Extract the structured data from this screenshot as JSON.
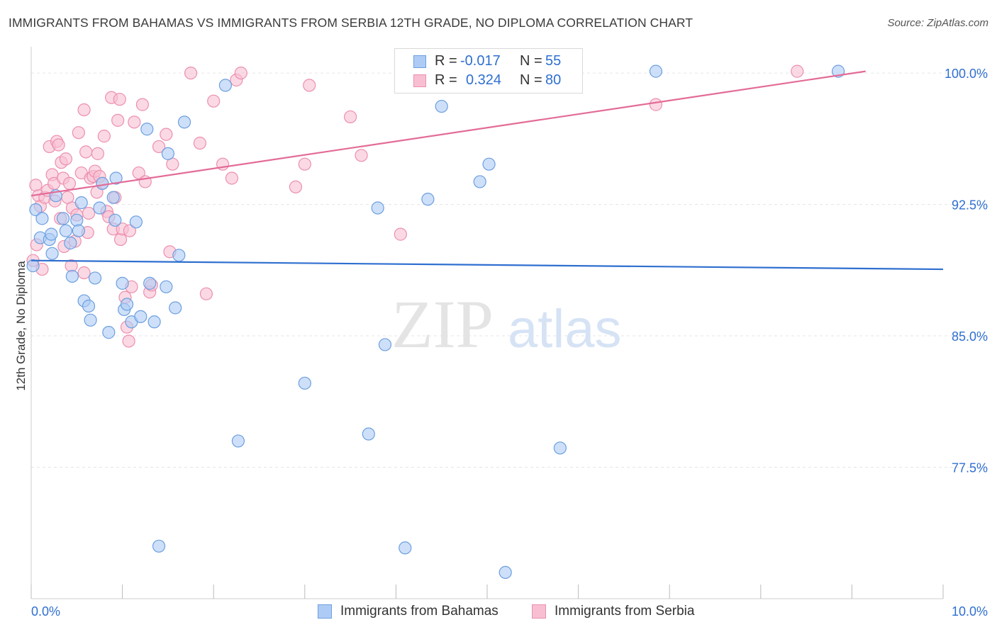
{
  "title": "IMMIGRANTS FROM BAHAMAS VS IMMIGRANTS FROM SERBIA 12TH GRADE, NO DIPLOMA CORRELATION CHART",
  "source": "Source: ZipAtlas.com",
  "watermark": {
    "zip": "ZIP",
    "atlas": "atlas"
  },
  "legend": {
    "bahamas": {
      "r_label": "R =",
      "r_value": "-0.017",
      "n_label": "N =",
      "n_value": "55"
    },
    "serbia": {
      "r_label": "R =",
      "r_value": "0.324",
      "n_label": "N =",
      "n_value": "80"
    }
  },
  "colors": {
    "bahamas_fill": "#aecbf5",
    "bahamas_stroke": "#6b9fe0",
    "bahamas_line": "#2f6fd0",
    "serbia_fill": "#f8bfd2",
    "serbia_stroke": "#ec8fae",
    "serbia_line": "#e36b97",
    "tick_label": "#2f6fd0",
    "grid": "#e5e5e5"
  },
  "chart_data": {
    "type": "scatter",
    "xlabel": "",
    "ylabel": "12th Grade, No Diploma",
    "xlim": [
      0,
      10
    ],
    "ylim": [
      70.0,
      101.5
    ],
    "x_tick_labels": [
      "0.0%",
      "10.0%"
    ],
    "y_ticks": [
      77.5,
      85.0,
      92.5,
      100.0
    ],
    "y_tick_labels": [
      "77.5%",
      "85.0%",
      "92.5%",
      "100.0%"
    ],
    "grid": true,
    "legend_position": "top-center",
    "series": [
      {
        "name": "Immigrants from Bahamas",
        "r": -0.017,
        "n": 55,
        "trend": {
          "x": [
            0.0,
            10.0
          ],
          "y": [
            89.3,
            88.8
          ]
        },
        "points": [
          [
            0.05,
            92.2
          ],
          [
            0.12,
            91.7
          ],
          [
            0.1,
            90.6
          ],
          [
            0.2,
            90.5
          ],
          [
            0.23,
            89.7
          ],
          [
            0.27,
            93.0
          ],
          [
            0.35,
            91.7
          ],
          [
            0.38,
            91.0
          ],
          [
            0.43,
            90.3
          ],
          [
            0.5,
            91.6
          ],
          [
            0.52,
            91.0
          ],
          [
            0.55,
            92.6
          ],
          [
            0.58,
            87.0
          ],
          [
            0.63,
            86.7
          ],
          [
            0.65,
            85.9
          ],
          [
            0.7,
            88.3
          ],
          [
            0.75,
            92.3
          ],
          [
            0.78,
            93.7
          ],
          [
            0.85,
            85.2
          ],
          [
            0.9,
            92.9
          ],
          [
            0.92,
            91.6
          ],
          [
            0.93,
            94.0
          ],
          [
            1.0,
            88.0
          ],
          [
            1.02,
            86.5
          ],
          [
            1.05,
            86.8
          ],
          [
            1.1,
            85.8
          ],
          [
            1.15,
            91.5
          ],
          [
            1.2,
            86.1
          ],
          [
            1.27,
            96.8
          ],
          [
            1.3,
            88.0
          ],
          [
            1.35,
            85.8
          ],
          [
            1.4,
            73.0
          ],
          [
            1.48,
            87.8
          ],
          [
            1.5,
            95.4
          ],
          [
            1.58,
            86.6
          ],
          [
            1.68,
            97.2
          ],
          [
            2.13,
            99.3
          ],
          [
            2.27,
            79.0
          ],
          [
            3.0,
            82.3
          ],
          [
            3.7,
            79.4
          ],
          [
            3.8,
            92.3
          ],
          [
            3.88,
            84.5
          ],
          [
            4.1,
            72.9
          ],
          [
            4.35,
            92.8
          ],
          [
            4.5,
            98.1
          ],
          [
            4.92,
            93.8
          ],
          [
            5.02,
            94.8
          ],
          [
            5.2,
            71.5
          ],
          [
            5.8,
            78.6
          ],
          [
            6.85,
            100.1
          ],
          [
            8.85,
            100.1
          ],
          [
            0.02,
            89.0
          ],
          [
            0.22,
            90.8
          ],
          [
            0.45,
            88.4
          ],
          [
            1.62,
            89.6
          ]
        ]
      },
      {
        "name": "Immigrants from Serbia",
        "r": 0.324,
        "n": 80,
        "trend": {
          "x": [
            0.0,
            9.15
          ],
          "y": [
            93.0,
            100.1
          ]
        },
        "points": [
          [
            0.05,
            93.6
          ],
          [
            0.08,
            93.0
          ],
          [
            0.1,
            92.4
          ],
          [
            0.15,
            92.9
          ],
          [
            0.18,
            93.3
          ],
          [
            0.2,
            95.8
          ],
          [
            0.23,
            94.2
          ],
          [
            0.25,
            93.7
          ],
          [
            0.28,
            96.1
          ],
          [
            0.3,
            95.9
          ],
          [
            0.33,
            94.9
          ],
          [
            0.35,
            94.0
          ],
          [
            0.38,
            95.1
          ],
          [
            0.4,
            92.9
          ],
          [
            0.42,
            93.7
          ],
          [
            0.45,
            92.3
          ],
          [
            0.48,
            90.4
          ],
          [
            0.5,
            91.9
          ],
          [
            0.52,
            96.6
          ],
          [
            0.55,
            94.3
          ],
          [
            0.58,
            97.9
          ],
          [
            0.6,
            95.5
          ],
          [
            0.63,
            92.0
          ],
          [
            0.65,
            94.0
          ],
          [
            0.68,
            94.1
          ],
          [
            0.7,
            94.4
          ],
          [
            0.73,
            95.4
          ],
          [
            0.75,
            94.1
          ],
          [
            0.78,
            93.7
          ],
          [
            0.8,
            96.4
          ],
          [
            0.83,
            92.1
          ],
          [
            0.85,
            91.8
          ],
          [
            0.88,
            98.6
          ],
          [
            0.9,
            91.1
          ],
          [
            0.92,
            92.9
          ],
          [
            0.95,
            97.3
          ],
          [
            0.97,
            98.5
          ],
          [
            0.98,
            90.5
          ],
          [
            1.0,
            91.1
          ],
          [
            1.03,
            87.2
          ],
          [
            1.05,
            85.5
          ],
          [
            1.07,
            84.7
          ],
          [
            1.1,
            87.8
          ],
          [
            1.13,
            97.2
          ],
          [
            1.18,
            94.3
          ],
          [
            1.22,
            98.2
          ],
          [
            1.25,
            93.8
          ],
          [
            1.3,
            87.5
          ],
          [
            1.32,
            87.9
          ],
          [
            1.4,
            95.8
          ],
          [
            1.48,
            96.5
          ],
          [
            1.52,
            89.8
          ],
          [
            1.55,
            94.8
          ],
          [
            1.75,
            100.0
          ],
          [
            1.85,
            96.0
          ],
          [
            1.92,
            87.4
          ],
          [
            2.0,
            98.4
          ],
          [
            2.1,
            94.8
          ],
          [
            2.2,
            94.0
          ],
          [
            2.25,
            99.6
          ],
          [
            2.3,
            100.0
          ],
          [
            2.9,
            93.5
          ],
          [
            3.0,
            94.8
          ],
          [
            3.05,
            99.3
          ],
          [
            3.5,
            97.5
          ],
          [
            3.62,
            95.3
          ],
          [
            4.05,
            90.8
          ],
          [
            6.85,
            98.2
          ],
          [
            8.4,
            100.1
          ],
          [
            0.02,
            89.3
          ],
          [
            0.06,
            90.2
          ],
          [
            0.12,
            88.8
          ],
          [
            0.32,
            91.7
          ],
          [
            0.62,
            90.9
          ],
          [
            0.72,
            93.2
          ],
          [
            1.08,
            91.0
          ],
          [
            0.26,
            92.7
          ],
          [
            0.44,
            89.0
          ],
          [
            0.58,
            88.6
          ],
          [
            0.36,
            90.1
          ]
        ]
      }
    ]
  }
}
